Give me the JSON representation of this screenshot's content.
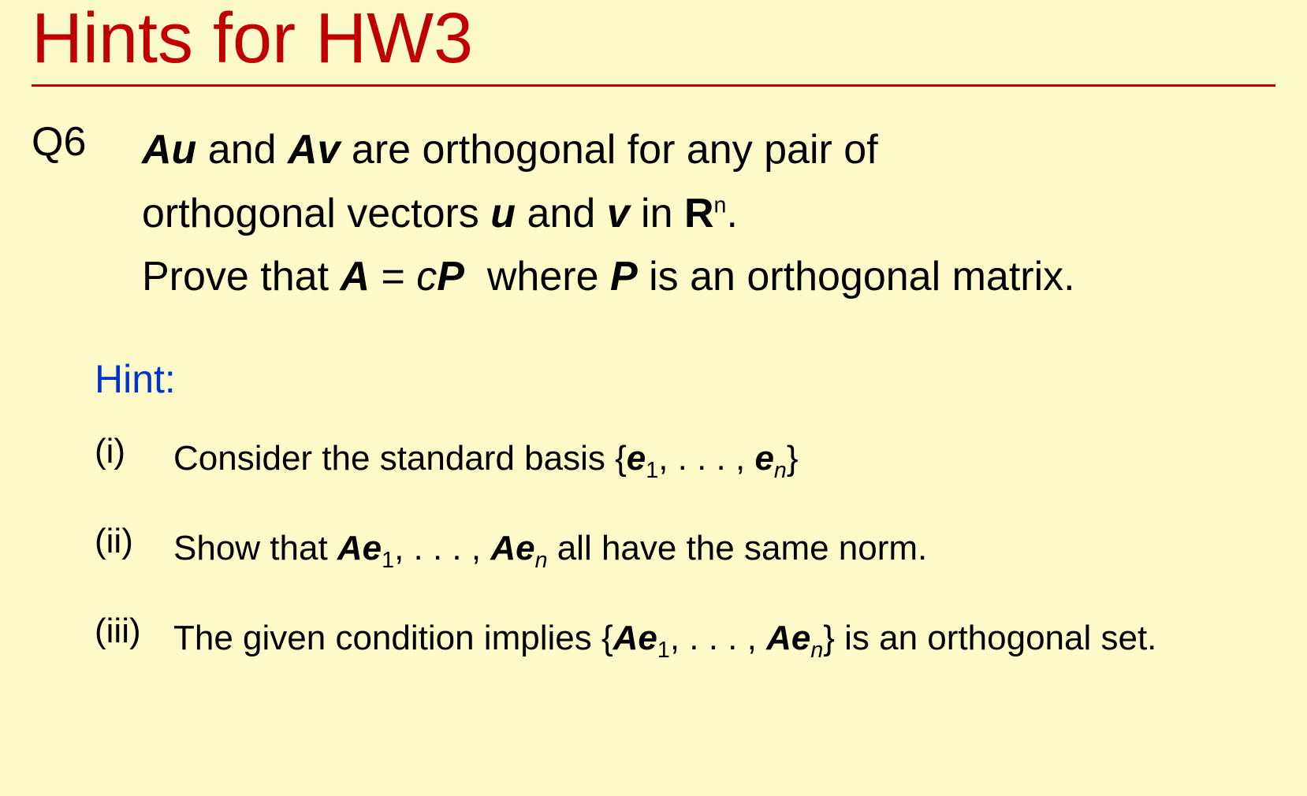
{
  "colors": {
    "background": "#fbfac8",
    "title": "#c00000",
    "rule": "#c00000",
    "hintLabel": "#0033cc",
    "text": "#000000"
  },
  "typography": {
    "family": "Verdana",
    "title_fontsize": 90,
    "body_fontsize": 52,
    "hintlabel_fontsize": 50,
    "hint_fontsize": 44
  },
  "title": "Hints for HW3",
  "question": {
    "label": "Q6",
    "line1_html": "<span class='bi'>Au</span> and <span class='bi'>Av</span> are orthogonal for any pair of",
    "line2_html": "orthogonal vectors <span class='bi'>u</span> and <span class='bi'>v</span> in <span class='b'>R</span><sup>n</sup>.",
    "line3_html": "Prove that <span class='bi'>A</span> = <span class='it'>c</span><span class='bi'>P</span>&nbsp; where <span class='bi'>P</span> is an orthogonal matrix."
  },
  "hintLabel": "Hint:",
  "hints": [
    {
      "num": "(i)",
      "html": "Consider the standard basis {<span class='bi'>e</span><sub class='up'>1</sub>, . . . , <span class='bi'>e</span><sub>n</sub>}"
    },
    {
      "num": "(ii)",
      "html": "Show that <span class='bi'>Ae</span><sub class='up'>1</sub>, . . . , <span class='bi'>Ae</span><sub>n</sub> all have the same norm."
    },
    {
      "num": "(iii)",
      "html": "The given condition implies {<span class='bi'>Ae</span><sub class='up'>1</sub>, . . . , <span class='bi'>Ae</span><sub>n</sub>} is an orthogonal set."
    }
  ]
}
